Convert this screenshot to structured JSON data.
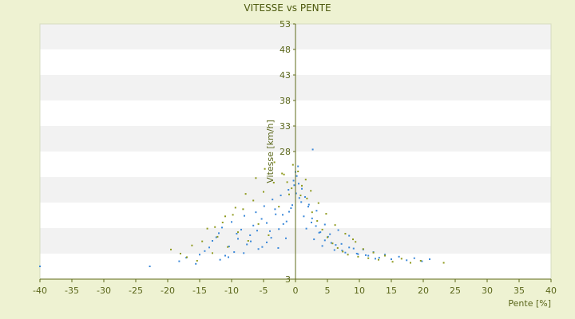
{
  "chart_data": {
    "type": "scatter",
    "title": "VITESSE vs PENTE",
    "xlabel": "Pente [%]",
    "ylabel": "Vitesse [km/h]",
    "xlim": [
      -40,
      40
    ],
    "ylim": [
      3,
      53
    ],
    "xticks": [
      -40,
      -35,
      -30,
      -25,
      -20,
      -15,
      -10,
      -5,
      0,
      5,
      10,
      15,
      20,
      25,
      30,
      35,
      40
    ],
    "yticks": [
      3,
      8,
      13,
      18,
      23,
      28,
      33,
      38,
      43,
      48,
      53
    ],
    "y_tick_labels_shown": [
      28,
      33,
      38,
      43,
      48,
      53,
      3
    ],
    "grid": "horizontal alternating bands",
    "colors": {
      "series_blue": "#3b88d9",
      "series_olive": "#8f9a1e",
      "band_light": "#ffffff",
      "band_dark": "#f2f2f2",
      "axis": "#5f6b1a",
      "background": "#eef2d2"
    },
    "series": [
      {
        "color": "#3b88d9",
        "x": [
          -40,
          -22.8,
          -18.2,
          -17.1,
          -15.6,
          -15.0,
          -14.2,
          -13.5,
          -13.0,
          -12.4,
          -12.0,
          -11.5,
          -11.0,
          -10.4,
          -10.0,
          -9.6,
          -9.0,
          -8.5,
          -8.0,
          -7.6,
          -7.1,
          -6.6,
          -6.2,
          -5.8,
          -5.3,
          -4.9,
          -4.5,
          -4.0,
          -3.6,
          -3.1,
          -2.7,
          -2.3,
          -1.9,
          -1.5,
          -1.1,
          -0.7,
          -0.3,
          0.0,
          0.2,
          0.5,
          0.9,
          1.3,
          1.7,
          2.1,
          2.5,
          2.9,
          3.3,
          3.7,
          4.2,
          4.6,
          5.1,
          5.6,
          6.1,
          6.7,
          7.2,
          7.8,
          8.4,
          9.1,
          9.8,
          10.6,
          11.4,
          12.2,
          13.1,
          14.0,
          15.0,
          16.2,
          17.4,
          18.6,
          19.8,
          21.0,
          2.7,
          0.4,
          -0.2,
          0.1,
          -0.5,
          0.6,
          -1.0,
          1.0,
          -1.4,
          1.5,
          -2.0,
          2.0,
          -2.6,
          2.6,
          -3.2,
          3.2,
          -3.8,
          3.9,
          -4.5,
          4.6,
          -5.2,
          5.4,
          -6.0,
          6.3,
          -7.0,
          7.3,
          -8.1,
          8.4,
          -9.2,
          9.6,
          -10.5,
          11.0,
          -11.8,
          12.5
        ],
        "y": [
          5.5,
          5.5,
          6.5,
          7.2,
          6.0,
          7.8,
          8.5,
          9.2,
          10.5,
          11.2,
          12.0,
          13.1,
          7.6,
          9.4,
          14.2,
          8.3,
          10.9,
          12.7,
          15.4,
          9.8,
          11.6,
          13.5,
          16.1,
          8.9,
          14.8,
          17.3,
          10.2,
          12.4,
          18.6,
          15.7,
          9.1,
          19.4,
          13.8,
          11.0,
          20.5,
          16.9,
          22.3,
          24.0,
          23.2,
          21.7,
          18.1,
          15.3,
          12.9,
          17.6,
          14.1,
          10.8,
          16.4,
          12.1,
          9.5,
          13.7,
          11.3,
          10.1,
          8.7,
          12.6,
          9.9,
          8.2,
          11.5,
          9.0,
          7.9,
          8.8,
          7.6,
          8.3,
          7.2,
          7.8,
          6.9,
          7.4,
          6.7,
          7.1,
          6.5,
          6.9,
          28.4,
          25.1,
          21.4,
          19.8,
          17.5,
          18.9,
          16.2,
          20.7,
          14.3,
          19.1,
          15.6,
          17.2,
          12.8,
          14.9,
          16.7,
          13.4,
          11.1,
          12.2,
          14.0,
          10.6,
          9.3,
          11.8,
          12.5,
          9.7,
          10.4,
          8.6,
          8.1,
          9.2,
          11.9,
          8.0,
          7.3,
          7.7,
          6.8,
          7.0
        ]
      },
      {
        "color": "#8f9a1e",
        "x": [
          -19.5,
          -18.0,
          -17.0,
          -16.2,
          -15.4,
          -14.6,
          -13.8,
          -13.0,
          -12.2,
          -11.4,
          -10.6,
          -9.8,
          -9.0,
          -8.2,
          -7.4,
          -6.6,
          -5.8,
          -5.0,
          -4.2,
          -3.4,
          -2.6,
          -1.8,
          -1.0,
          -0.4,
          0.4,
          1.0,
          1.8,
          2.6,
          3.4,
          4.2,
          5.0,
          5.8,
          6.6,
          7.4,
          8.2,
          9.0,
          9.8,
          10.6,
          11.4,
          12.2,
          13.0,
          14.0,
          15.2,
          16.6,
          18.0,
          19.6,
          23.2,
          -6.2,
          -4.8,
          -3.3,
          -2.1,
          -1.3,
          -0.6,
          0.8,
          1.6,
          2.4,
          3.6,
          -7.8,
          -9.4,
          -11.0,
          -12.6,
          4.8,
          6.2,
          7.8,
          9.4
        ],
        "y": [
          8.8,
          8.0,
          7.3,
          9.6,
          6.6,
          10.4,
          12.9,
          8.1,
          11.3,
          14.1,
          9.3,
          15.6,
          12.2,
          16.7,
          10.5,
          18.4,
          13.8,
          20.1,
          11.6,
          21.9,
          17.2,
          23.5,
          19.6,
          25.4,
          24.1,
          21.3,
          18.8,
          16.1,
          14.4,
          12.7,
          11.2,
          10.0,
          9.1,
          8.4,
          7.8,
          10.8,
          7.4,
          8.9,
          7.1,
          8.2,
          6.8,
          7.6,
          6.4,
          7.0,
          6.2,
          6.6,
          6.2,
          22.8,
          24.6,
          25.9,
          23.7,
          22.0,
          20.8,
          19.4,
          22.5,
          20.3,
          17.9,
          19.7,
          17.0,
          15.3,
          13.2,
          15.8,
          13.6,
          11.9,
          10.3
        ]
      }
    ]
  }
}
